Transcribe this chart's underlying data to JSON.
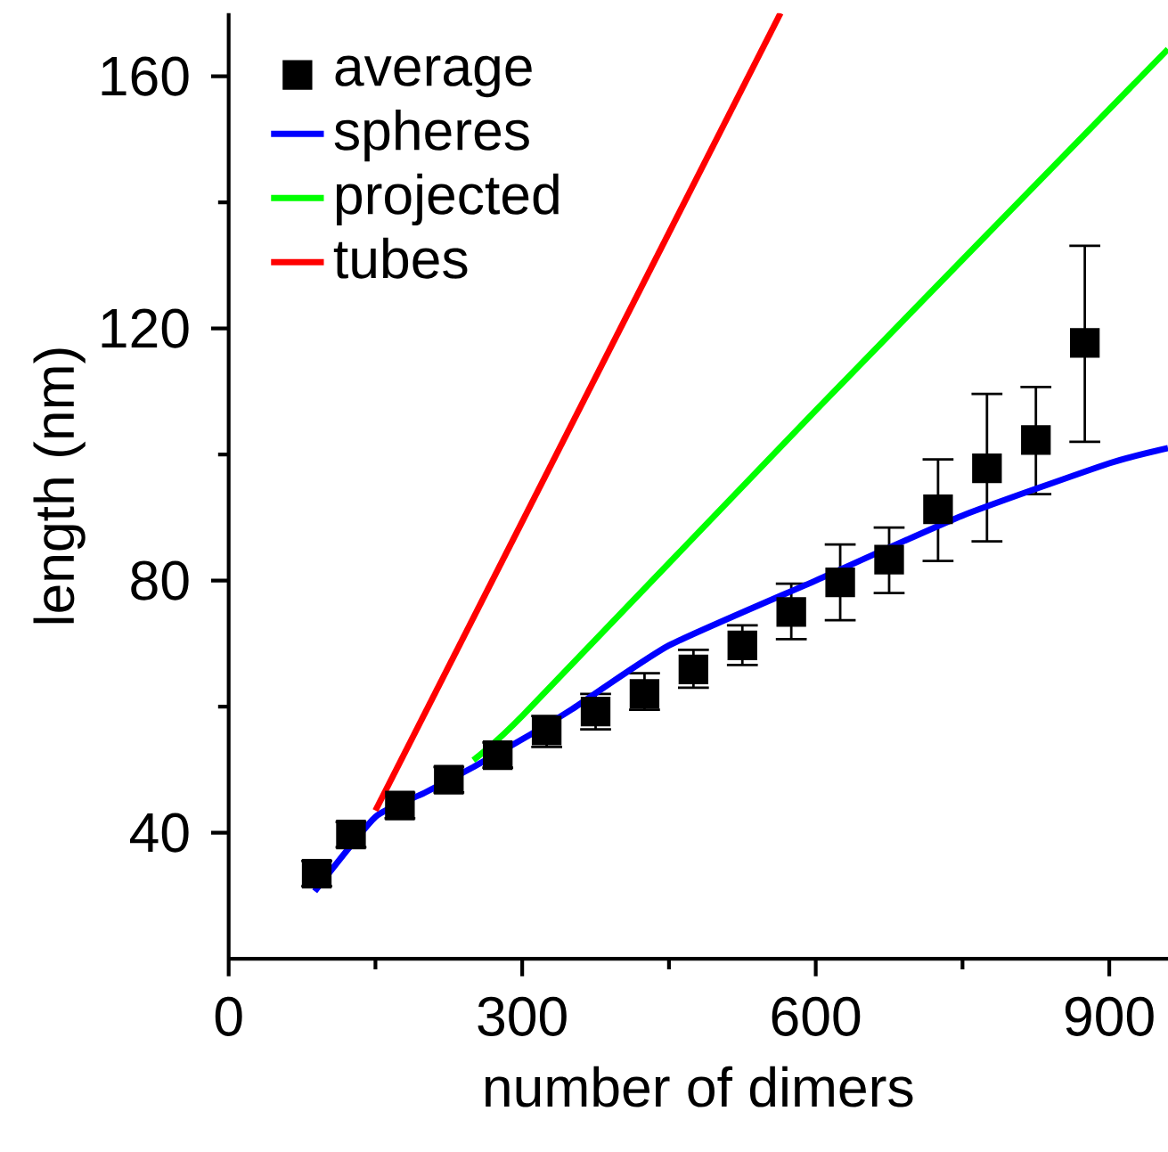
{
  "chart_data": {
    "type": "line",
    "xlabel": "number of dimers",
    "ylabel": "length (nm)",
    "xlim": [
      0,
      960
    ],
    "ylim": [
      20,
      170
    ],
    "xticks": [
      0,
      300,
      600,
      900
    ],
    "yticks": [
      40,
      80,
      120,
      160
    ],
    "legend": "top left",
    "grid": false,
    "series": [
      {
        "name": "average",
        "type": "scatter",
        "marker": "square",
        "color": "#000000",
        "x": [
          90,
          125,
          175,
          225,
          275,
          325,
          375,
          425,
          475,
          525,
          575,
          625,
          675,
          725,
          775,
          825,
          875
        ],
        "values": [
          33.5,
          39.7,
          44.3,
          48.4,
          52.3,
          56.2,
          59.2,
          62.0,
          65.9,
          69.7,
          75.0,
          79.7,
          83.3,
          91.3,
          97.8,
          102.3,
          117.7
        ],
        "errors": [
          2,
          2,
          2,
          2,
          2,
          [
            53.6,
            58.5
          ],
          [
            56.4,
            62
          ],
          [
            59.5,
            65.3
          ],
          [
            63,
            69
          ],
          [
            66.6,
            72.9
          ],
          [
            70.7,
            79.5
          ],
          [
            73.7,
            85.7
          ],
          [
            78,
            88.4
          ],
          [
            83.1,
            99.2
          ],
          [
            86.2,
            109.6
          ],
          [
            93.7,
            110.7
          ],
          [
            102,
            133.1
          ]
        ]
      },
      {
        "name": "spheres",
        "color": "#0000ff",
        "x": [
          88,
          150,
          200,
          250,
          300,
          350,
          450,
          600,
          750,
          900,
          960
        ],
        "values": [
          30.7,
          42.5,
          46.3,
          50.4,
          54.8,
          59.5,
          69.7,
          80,
          90.3,
          98.6,
          101
        ]
      },
      {
        "name": "projected",
        "color": "#00ff00",
        "x": [
          250,
          300,
          600,
          960
        ],
        "values": [
          51.5,
          58.5,
          107,
          164.3
        ]
      },
      {
        "name": "tubes",
        "color": "#ff0000",
        "x": [
          150,
          564
        ],
        "values": [
          43.5,
          170
        ]
      }
    ]
  }
}
